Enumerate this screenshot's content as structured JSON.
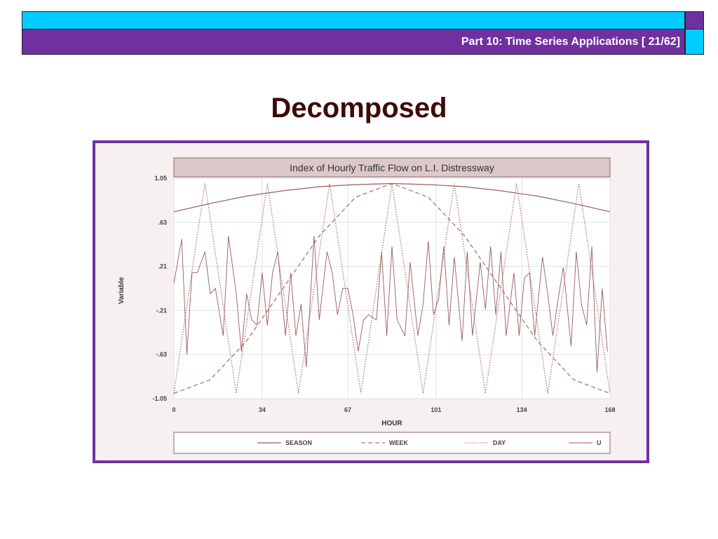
{
  "slide": {
    "header": "Part 10: Time Series Applications [ 21/62]",
    "title": "Decomposed"
  },
  "colors": {
    "header_band": "#7030a0",
    "accent_band": "#00ccff",
    "frame": "#7030a0",
    "title_text": "#3d0a0a",
    "series_line": "#9a5c5c"
  },
  "chart_data": {
    "type": "line",
    "title": "Index of Hourly Traffic Flow on L.I. Distressway",
    "xlabel": "HOUR",
    "ylabel": "Variable",
    "xlim": [
      0,
      168
    ],
    "ylim": [
      -1.05,
      1.05
    ],
    "xticks": [
      0,
      34,
      67,
      101,
      134,
      168
    ],
    "yticks": [
      -1.05,
      -0.63,
      -0.21,
      0.21,
      0.63,
      1.05
    ],
    "xtick_labels": [
      "0",
      "34",
      "67",
      "101",
      "134",
      "168"
    ],
    "ytick_labels": [
      "-1.05",
      "-.63",
      "-.21",
      ".21",
      ".63",
      "1.05"
    ],
    "legend_position": "bottom",
    "series": [
      {
        "name": "SEASON",
        "style": "solid",
        "x": [
          0,
          14,
          28,
          42,
          56,
          70,
          84,
          98,
          112,
          126,
          140,
          154,
          168
        ],
        "values": [
          0.73,
          0.81,
          0.88,
          0.93,
          0.97,
          0.99,
          1.0,
          0.99,
          0.97,
          0.93,
          0.88,
          0.81,
          0.73
        ]
      },
      {
        "name": "WEEK",
        "style": "dashed",
        "x": [
          0,
          14,
          28,
          42,
          56,
          70,
          84,
          98,
          112,
          126,
          140,
          154,
          168
        ],
        "values": [
          -1.0,
          -0.87,
          -0.5,
          0.0,
          0.5,
          0.87,
          1.0,
          0.87,
          0.5,
          0.0,
          -0.5,
          -0.87,
          -1.0
        ]
      },
      {
        "name": "DAY",
        "style": "dotted",
        "x": [
          0,
          6,
          12,
          18,
          24,
          30,
          36,
          42,
          48,
          54,
          60,
          66,
          72,
          78,
          84,
          90,
          96,
          102,
          108,
          114,
          120,
          126,
          132,
          138,
          144,
          150,
          156,
          162,
          168
        ],
        "values": [
          -1.0,
          0.0,
          1.0,
          0.0,
          -1.0,
          0.0,
          1.0,
          0.0,
          -1.0,
          0.0,
          1.0,
          0.0,
          -1.0,
          0.0,
          1.0,
          0.0,
          -1.0,
          0.0,
          1.0,
          0.0,
          -1.0,
          0.0,
          1.0,
          0.0,
          -1.0,
          0.0,
          1.0,
          0.0,
          -1.0
        ]
      },
      {
        "name": "U",
        "style": "solid-thin",
        "x": [
          0,
          3,
          5,
          7,
          9,
          12,
          14,
          16,
          19,
          21,
          24,
          26,
          28,
          30,
          32,
          34,
          36,
          38,
          40,
          43,
          45,
          47,
          49,
          51,
          54,
          56,
          59,
          61,
          63,
          65,
          67,
          69,
          71,
          73,
          75,
          78,
          80,
          82,
          84,
          86,
          89,
          91,
          94,
          96,
          98,
          100,
          102,
          104,
          106,
          108,
          111,
          113,
          115,
          118,
          120,
          122,
          124,
          126,
          128,
          131,
          133,
          135,
          137,
          139,
          142,
          144,
          146,
          148,
          150,
          153,
          155,
          157,
          159,
          161,
          163,
          165,
          167
        ],
        "values": [
          0.05,
          0.47,
          -0.63,
          0.15,
          0.15,
          0.35,
          -0.05,
          0.0,
          -0.45,
          0.5,
          -0.05,
          -0.6,
          -0.05,
          -0.3,
          -0.35,
          0.15,
          -0.35,
          0.15,
          0.35,
          -0.45,
          0.15,
          -0.45,
          -0.15,
          -0.75,
          0.5,
          -0.3,
          0.35,
          0.15,
          -0.25,
          0.0,
          0.0,
          -0.25,
          -0.6,
          -0.3,
          -0.25,
          -0.3,
          0.35,
          -0.45,
          0.4,
          -0.3,
          -0.45,
          0.25,
          -0.45,
          -0.15,
          0.45,
          -0.25,
          -0.1,
          0.4,
          -0.35,
          0.3,
          -0.5,
          0.35,
          -0.45,
          0.25,
          -0.2,
          0.4,
          -0.25,
          0.35,
          -0.45,
          0.15,
          -0.45,
          0.1,
          0.15,
          -0.45,
          0.3,
          -0.05,
          -0.45,
          -0.1,
          0.2,
          -0.55,
          0.35,
          -0.15,
          -0.35,
          0.4,
          -0.8,
          0.0,
          -0.6
        ]
      }
    ]
  }
}
